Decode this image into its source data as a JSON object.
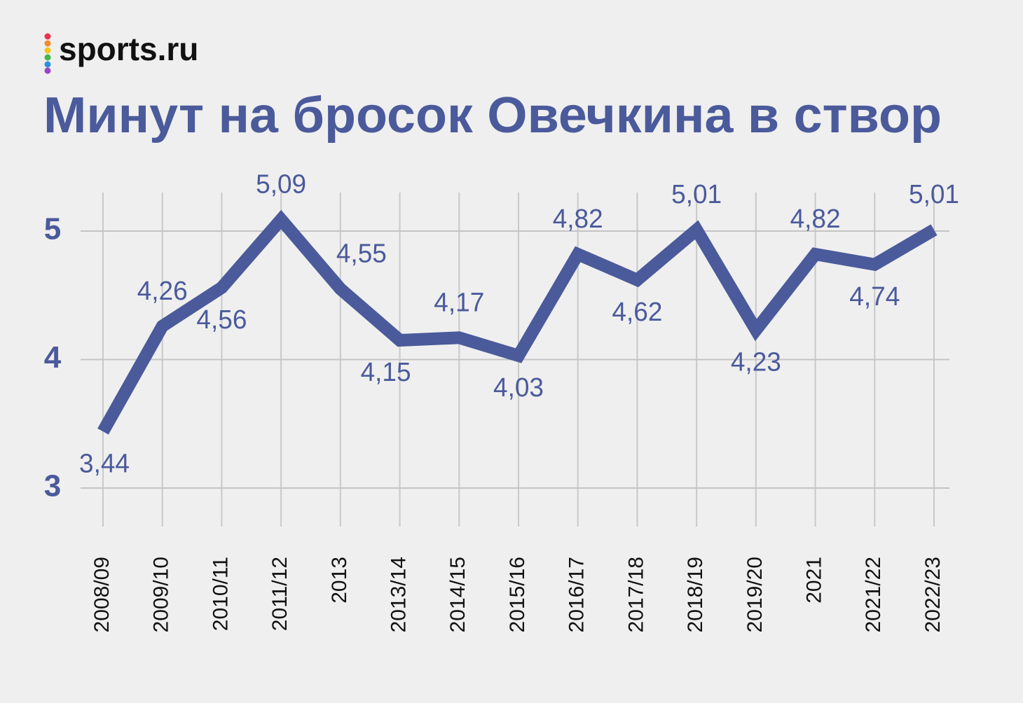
{
  "chart_data": {
    "type": "line",
    "logo": "sports.ru",
    "title": "Минут на бросок Овечкина в створ",
    "categories": [
      "2008/09",
      "2009/10",
      "2010/11",
      "2011/12",
      "2013",
      "2013/14",
      "2014/15",
      "2015/16",
      "2016/17",
      "2017/18",
      "2018/19",
      "2019/20",
      "2021",
      "2021/22",
      "2022/23"
    ],
    "values": [
      3.44,
      4.26,
      4.56,
      5.09,
      4.55,
      4.15,
      4.17,
      4.03,
      4.82,
      4.62,
      5.01,
      4.23,
      4.82,
      4.74,
      5.01
    ],
    "value_labels": [
      "3,44",
      "4,26",
      "4,56",
      "5,09",
      "4,55",
      "4,15",
      "4,17",
      "4,03",
      "4,82",
      "4,62",
      "5,01",
      "4,23",
      "4,82",
      "4,74",
      "5,01"
    ],
    "color": "#4a5a9b",
    "ylim": [
      2.7,
      5.3
    ],
    "yticks": [
      3,
      4,
      5
    ],
    "grid": true
  }
}
